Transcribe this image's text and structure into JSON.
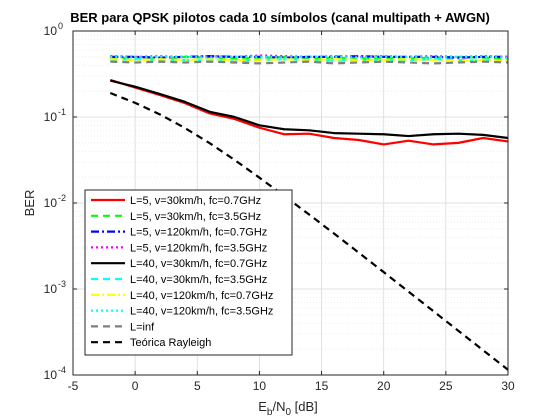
{
  "chart_data": {
    "type": "line",
    "title": "BER para QPSK pilotos cada 10 símbolos (canal multipath + AWGN)",
    "xlabel": {
      "main": "E",
      "sub1": "b",
      "mid": "/N",
      "sub2": "0",
      "tail": " [dB]"
    },
    "ylabel": "BER",
    "x_scale": "linear",
    "y_scale": "log",
    "xlim": [
      -5,
      30
    ],
    "ylim": [
      0.0001,
      1
    ],
    "grid": true,
    "legend_position": "bottom-left",
    "x_ticks": [
      {
        "value": -5,
        "label": "-5"
      },
      {
        "value": 0,
        "label": "0"
      },
      {
        "value": 5,
        "label": "5"
      },
      {
        "value": 10,
        "label": "10"
      },
      {
        "value": 15,
        "label": "15"
      },
      {
        "value": 20,
        "label": "20"
      },
      {
        "value": 25,
        "label": "25"
      },
      {
        "value": 30,
        "label": "30"
      }
    ],
    "y_ticks": [
      {
        "value": 1,
        "base": "10",
        "exp": "0"
      },
      {
        "value": 0.1,
        "base": "10",
        "exp": "-1"
      },
      {
        "value": 0.01,
        "base": "10",
        "exp": "-2"
      },
      {
        "value": 0.001,
        "base": "10",
        "exp": "-3"
      },
      {
        "value": 0.0001,
        "base": "10",
        "exp": "-4"
      }
    ],
    "x": [
      -2,
      0,
      2,
      4,
      6,
      8,
      10,
      12,
      14,
      16,
      18,
      20,
      22,
      24,
      26,
      28,
      30
    ],
    "series": [
      {
        "name": "L=5, v=30km/h, fc=0.7GHz",
        "color": "#ff0000",
        "dash": "solid",
        "values": [
          0.27,
          0.22,
          0.18,
          0.145,
          0.11,
          0.095,
          0.075,
          0.063,
          0.064,
          0.057,
          0.054,
          0.048,
          0.053,
          0.048,
          0.05,
          0.057,
          0.052
        ]
      },
      {
        "name": "L=5, v=30km/h, fc=3.5GHz",
        "color": "#00ff00",
        "dash": "dashed",
        "values": [
          0.48,
          0.49,
          0.48,
          0.5,
          0.49,
          0.48,
          0.49,
          0.5,
          0.48,
          0.49,
          0.48,
          0.49,
          0.48,
          0.49,
          0.5,
          0.49,
          0.48
        ]
      },
      {
        "name": "L=5, v=120km/h, fc=0.7GHz",
        "color": "#0000ff",
        "dash": "dashdot",
        "values": [
          0.5,
          0.5,
          0.49,
          0.5,
          0.51,
          0.5,
          0.5,
          0.49,
          0.5,
          0.5,
          0.51,
          0.5,
          0.5,
          0.5,
          0.49,
          0.5,
          0.5
        ]
      },
      {
        "name": "L=5, v=120km/h, fc=3.5GHz",
        "color": "#ff00ff",
        "dash": "dotted",
        "values": [
          0.51,
          0.5,
          0.51,
          0.5,
          0.51,
          0.5,
          0.52,
          0.51,
          0.5,
          0.51,
          0.5,
          0.51,
          0.5,
          0.51,
          0.5,
          0.51,
          0.5
        ]
      },
      {
        "name": "L=40, v=30km/h, fc=0.7GHz",
        "color": "#000000",
        "dash": "solid",
        "values": [
          0.265,
          0.225,
          0.185,
          0.15,
          0.115,
          0.1,
          0.08,
          0.072,
          0.07,
          0.065,
          0.064,
          0.063,
          0.06,
          0.063,
          0.064,
          0.062,
          0.057
        ]
      },
      {
        "name": "L=40, v=30km/h, fc=3.5GHz",
        "color": "#00ffff",
        "dash": "dashed",
        "values": [
          0.46,
          0.47,
          0.46,
          0.46,
          0.45,
          0.44,
          0.46,
          0.47,
          0.46,
          0.45,
          0.46,
          0.45,
          0.46,
          0.47,
          0.46,
          0.45,
          0.46
        ]
      },
      {
        "name": "L=40, v=120km/h, fc=0.7GHz",
        "color": "#ffff00",
        "dash": "dashdot",
        "values": [
          0.47,
          0.46,
          0.47,
          0.46,
          0.47,
          0.46,
          0.46,
          0.47,
          0.46,
          0.47,
          0.46,
          0.46,
          0.47,
          0.46,
          0.45,
          0.46,
          0.45
        ]
      },
      {
        "name": "L=40, v=120km/h, fc=3.5GHz",
        "color": "#00ffff",
        "dash": "dotted",
        "values": [
          0.5,
          0.49,
          0.5,
          0.5,
          0.49,
          0.5,
          0.5,
          0.49,
          0.5,
          0.5,
          0.49,
          0.5,
          0.5,
          0.49,
          0.5,
          0.5,
          0.49
        ]
      },
      {
        "name": "L=inf",
        "color": "#7f7f7f",
        "dash": "dashed",
        "values": [
          0.44,
          0.43,
          0.44,
          0.43,
          0.44,
          0.43,
          0.42,
          0.43,
          0.44,
          0.42,
          0.43,
          0.44,
          0.43,
          0.42,
          0.43,
          0.44,
          0.43
        ]
      },
      {
        "name": "Teórica Rayleigh",
        "color": "#000000",
        "dash": "dashed",
        "values": [
          0.19,
          0.146,
          0.107,
          0.0746,
          0.0496,
          0.0317,
          0.0197,
          0.0121,
          0.00734,
          0.00442,
          0.00264,
          0.00157,
          0.000931,
          0.000552,
          0.000327,
          0.000194,
          0.000115
        ]
      }
    ]
  }
}
